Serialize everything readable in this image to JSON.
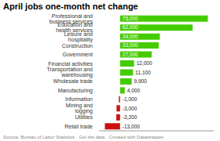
{
  "chart_data": {
    "type": "bar",
    "orientation": "horizontal",
    "title": "April jobs one-month net change",
    "categories": [
      "Professional and business services",
      "Education and health services",
      "Leisure and hospitality",
      "Construction",
      "Government",
      "Financial activities",
      "Transportation and warehousing",
      "Wholesale trade",
      "Manufacturing",
      "Information",
      "Mining and logging",
      "Utilities",
      "Retail trade"
    ],
    "values": [
      75000,
      62000,
      34000,
      33000,
      27000,
      12000,
      11100,
      9900,
      4000,
      -1000,
      -3000,
      -3200,
      -13000
    ],
    "value_labels": [
      "75,000",
      "62,000",
      "34,000",
      "33,000",
      "27,000",
      "12,000",
      "11,100",
      "9,900",
      "4,000",
      "-1,000",
      "-3,000",
      "-3,200",
      "-13,000"
    ],
    "data_labels": true,
    "colors": [
      "#44cc00",
      "#44cc00",
      "#44cc00",
      "#44cc00",
      "#44cc00",
      "#44cc00",
      "#44cc00",
      "#44cc00",
      "#44cc00",
      "#cc1111",
      "#cc1111",
      "#cc1111",
      "#cc1111"
    ],
    "xlim": [
      -18000,
      80000
    ],
    "tick_labels": "y",
    "annotations": [
      "Source: Bureau of Labor Statistics · Get the data · Created with Datawrapper"
    ]
  }
}
